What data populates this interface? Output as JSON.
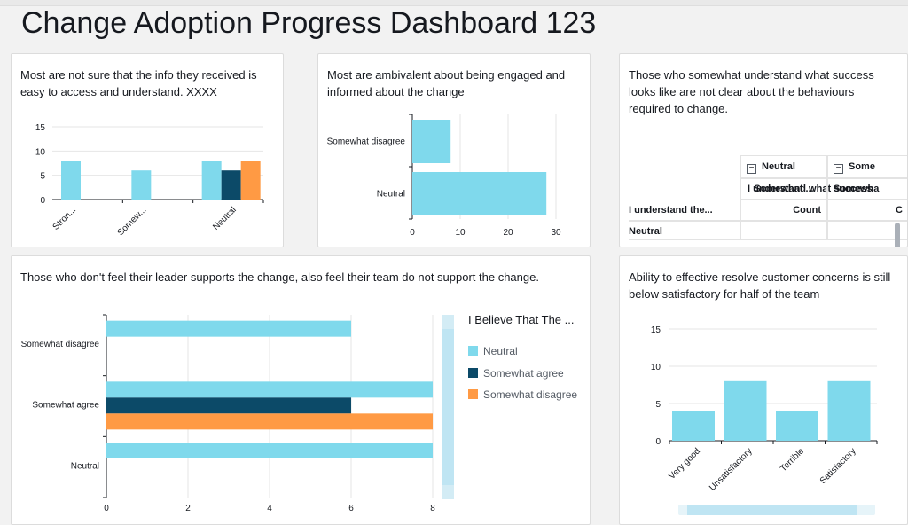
{
  "dashboard": {
    "title": "Change Adoption Progress Dashboard 123"
  },
  "colors": {
    "neutral": "#7fd9ec",
    "somewhat_agree": "#0c4a68",
    "somewhat_disagree": "#ff9a44",
    "grid": "#e6e6e6",
    "axis": "#16191f"
  },
  "cards": {
    "c1": {
      "title": "Most are not sure that the info they received is easy to access and understand. XXXX"
    },
    "c2": {
      "title": "Most are ambivalent about being engaged and informed about the change"
    },
    "c3": {
      "title": "Those who somewhat understand what success looks like are not clear about the behaviours required to change."
    },
    "c4": {
      "title": "Those who don't feel their leader supports the change, also feel their team do not support the change."
    },
    "c5": {
      "title": "Ability to effective resolve customer concerns is still below satisfactory for half of the team"
    }
  },
  "pivot": {
    "column_header": "I understand what success",
    "row_header": "I understand the...",
    "col_groups": [
      "Neutral",
      "Some"
    ],
    "sub_headers": [
      "Somewhat ...",
      "Somewha"
    ],
    "measure": [
      "Count",
      "C"
    ],
    "first_row": "Neutral"
  },
  "chart_data": [
    {
      "type": "bar",
      "categories": [
        "Stron...",
        "Somew...",
        "Neutral"
      ],
      "series": [
        {
          "values": [
            8,
            6,
            8
          ]
        },
        {
          "values": [
            null,
            null,
            6
          ]
        },
        {
          "values": [
            null,
            null,
            8
          ]
        }
      ],
      "ylim": [
        0,
        15
      ],
      "yticks": [
        "0",
        "5",
        "10",
        "15"
      ]
    },
    {
      "type": "bar",
      "orientation": "horizontal",
      "categories": [
        "Somewhat disagree",
        "Neutral"
      ],
      "values": [
        8,
        28
      ],
      "xlim": [
        0,
        30
      ],
      "xticks": [
        "0",
        "10",
        "20",
        "30"
      ]
    },
    {
      "type": "bar",
      "orientation": "horizontal",
      "legend_title": "I Believe That The ...",
      "categories": [
        "Somewhat disagree",
        "Somewhat agree",
        "Neutral"
      ],
      "series": [
        {
          "name": "Neutral",
          "values": [
            6,
            8,
            8
          ]
        },
        {
          "name": "Somewhat agree",
          "values": [
            null,
            6,
            null
          ]
        },
        {
          "name": "Somewhat disagree",
          "values": [
            null,
            8,
            null
          ]
        }
      ],
      "xlim": [
        0,
        8
      ],
      "xticks": [
        "0",
        "2",
        "4",
        "6",
        "8"
      ],
      "legend": "right"
    },
    {
      "type": "bar",
      "categories": [
        "Very good",
        "Unsatisfactory",
        "Terrible",
        "Satisfactory"
      ],
      "values": [
        4,
        8,
        4,
        8
      ],
      "ylim": [
        0,
        15
      ],
      "yticks": [
        "0",
        "5",
        "10",
        "15"
      ]
    }
  ]
}
